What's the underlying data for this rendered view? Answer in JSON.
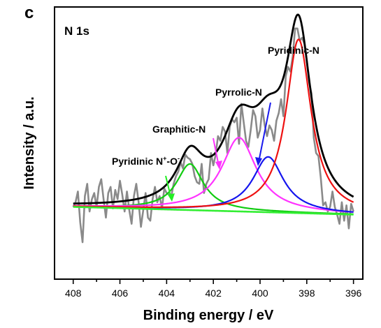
{
  "panel_label": "c",
  "chart_data": {
    "type": "line",
    "title": "N 1s",
    "xlabel": "Binding energy / eV",
    "ylabel": "Intensity / a.u.",
    "xlim": [
      408.8,
      395.6
    ],
    "x_reversed": true,
    "xticks": [
      408,
      406,
      404,
      402,
      400,
      398,
      396
    ],
    "y_tick_labels": false,
    "grid": false,
    "baseline": {
      "x": [
        408,
        396
      ],
      "y": [
        0.05,
        0.0
      ],
      "color": "#33ee33"
    },
    "peaks": [
      {
        "name": "Pyridinic N+-O-",
        "center": 403.0,
        "fwhm": 1.4,
        "height": 0.3,
        "color": "#11cc11"
      },
      {
        "name": "Graphitic-N",
        "center": 400.9,
        "fwhm": 1.8,
        "height": 0.48,
        "color": "#ff33ff"
      },
      {
        "name": "Pyrrolic-N",
        "center": 399.65,
        "fwhm": 1.6,
        "height": 0.36,
        "color": "#1515ee"
      },
      {
        "name": "Pyridinic-N",
        "center": 398.35,
        "fwhm": 1.3,
        "height": 1.13,
        "color": "#ee1111"
      }
    ],
    "raw_data": {
      "color": "#8a8a8a",
      "x": [
        408,
        407.9,
        407.8,
        407.7,
        407.6,
        407.5,
        407.4,
        407.3,
        407.2,
        407.1,
        407,
        406.9,
        406.8,
        406.7,
        406.6,
        406.5,
        406.4,
        406.3,
        406.2,
        406.1,
        406,
        405.9,
        405.8,
        405.7,
        405.6,
        405.5,
        405.4,
        405.3,
        405.2,
        405.1,
        405,
        404.9,
        404.8,
        404.7,
        404.6,
        404.5,
        404.4,
        404.3,
        404.2,
        404.1,
        404,
        403.9,
        403.8,
        403.7,
        403.6,
        403.5,
        403.4,
        403.3,
        403.2,
        403.1,
        403,
        402.9,
        402.8,
        402.7,
        402.6,
        402.5,
        402.4,
        402.3,
        402.2,
        402.1,
        402,
        401.9,
        401.8,
        401.7,
        401.6,
        401.5,
        401.4,
        401.3,
        401.2,
        401.1,
        401,
        400.9,
        400.8,
        400.7,
        400.6,
        400.5,
        400.4,
        400.3,
        400.2,
        400.1,
        400,
        399.9,
        399.8,
        399.7,
        399.6,
        399.5,
        399.4,
        399.3,
        399.2,
        399.1,
        399,
        398.9,
        398.8,
        398.7,
        398.6,
        398.5,
        398.4,
        398.3,
        398.2,
        398.1,
        398,
        397.9,
        397.8,
        397.7,
        397.6,
        397.5,
        397.4,
        397.3,
        397.2,
        397.1,
        397,
        396.9,
        396.8,
        396.7,
        396.6,
        396.5,
        396.4,
        396.3,
        396.2,
        396.1,
        396
      ],
      "y": [
        0.05,
        0.08,
        0.15,
        -0.05,
        -0.18,
        0.12,
        0.2,
        0.02,
        0.1,
        0.14,
        0.05,
        0.18,
        0.23,
        0.1,
        -0.02,
        0.14,
        0.18,
        0.04,
        0.16,
        0.1,
        0.22,
        0.13,
        0.02,
        0.15,
        0.03,
        -0.06,
        0.12,
        0.2,
        0.08,
        -0.08,
        0.03,
        0.14,
        -0.02,
        -0.04,
        0.1,
        0.18,
        0.08,
        0.12,
        0.04,
        0.17,
        0.14,
        0.13,
        0.12,
        0.2,
        0.25,
        0.28,
        0.34,
        0.3,
        0.39,
        0.37,
        0.36,
        0.33,
        0.25,
        0.21,
        0.2,
        0.33,
        0.14,
        0.2,
        0.23,
        0.4,
        0.32,
        0.39,
        0.51,
        0.48,
        0.57,
        0.54,
        0.4,
        0.57,
        0.62,
        0.6,
        0.63,
        0.46,
        0.72,
        0.6,
        0.48,
        0.44,
        0.55,
        0.68,
        0.64,
        0.5,
        0.55,
        0.69,
        0.58,
        0.51,
        0.58,
        0.55,
        0.48,
        0.61,
        0.66,
        0.75,
        0.64,
        0.9,
        0.96,
        0.93,
        1.03,
        1.21,
        1.21,
        1.13,
        1.15,
        1.11,
        1.0,
        0.86,
        0.79,
        0.5,
        0.4,
        0.38,
        0.24,
        0.06,
        0.08,
        0.02,
        0.05,
        0.15,
        0.05,
        0.0,
        -0.06,
        0.08,
        -0.04,
        0.06,
        -0.09,
        0.07,
        0.02
      ]
    },
    "annotations": [
      {
        "text": "Pyridinic N",
        "superscript": "+",
        "suffix": "-O",
        "superscript2": "-",
        "arrow_color": "#22ee22"
      },
      {
        "text": "Graphitic-N",
        "arrow_color": "#ff33ff"
      },
      {
        "text": "Pyrrolic-N",
        "arrow_color": "#1a1aee"
      },
      {
        "text": "Pyridinic-N",
        "arrow_color": null
      }
    ],
    "envelope_color": "#000000"
  }
}
